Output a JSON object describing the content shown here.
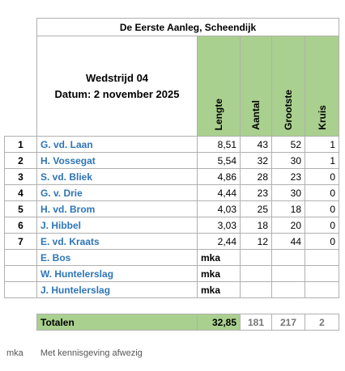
{
  "header": {
    "title": "De Eerste Aanleg, Scheendijk",
    "match": "Wedstrijd 04",
    "date": "Datum: 2 november 2025",
    "columns": [
      "Lengte",
      "Aantal",
      "Grootste",
      "Kruis"
    ]
  },
  "table": {
    "rows": [
      {
        "rank": "1",
        "name": "G. vd. Laan",
        "values": [
          "8,51",
          "43",
          "52",
          "1"
        ]
      },
      {
        "rank": "2",
        "name": "H. Vossegat",
        "values": [
          "5,54",
          "32",
          "30",
          "1"
        ]
      },
      {
        "rank": "3",
        "name": "S. vd. Bliek",
        "values": [
          "4,86",
          "28",
          "23",
          "0"
        ]
      },
      {
        "rank": "4",
        "name": "G. v. Drie",
        "values": [
          "4,44",
          "23",
          "30",
          "0"
        ]
      },
      {
        "rank": "5",
        "name": "H. vd. Brom",
        "values": [
          "4,03",
          "25",
          "18",
          "0"
        ]
      },
      {
        "rank": "6",
        "name": "J. Hibbel",
        "values": [
          "3,03",
          "18",
          "20",
          "0"
        ]
      },
      {
        "rank": "7",
        "name": "E. vd. Kraats",
        "values": [
          "2,44",
          "12",
          "44",
          "0"
        ]
      },
      {
        "name": "E. Bos",
        "status": "mka"
      },
      {
        "name": "W. Huntelerslag",
        "status": "mka"
      },
      {
        "name": "J. Huntelerslag",
        "status": "mka"
      }
    ]
  },
  "totals": {
    "label": "Totalen",
    "values": [
      "32,85",
      "181",
      "217",
      "2"
    ]
  },
  "footer": {
    "abbr": "mka",
    "text": "Met kennisgeving afwezig"
  }
}
